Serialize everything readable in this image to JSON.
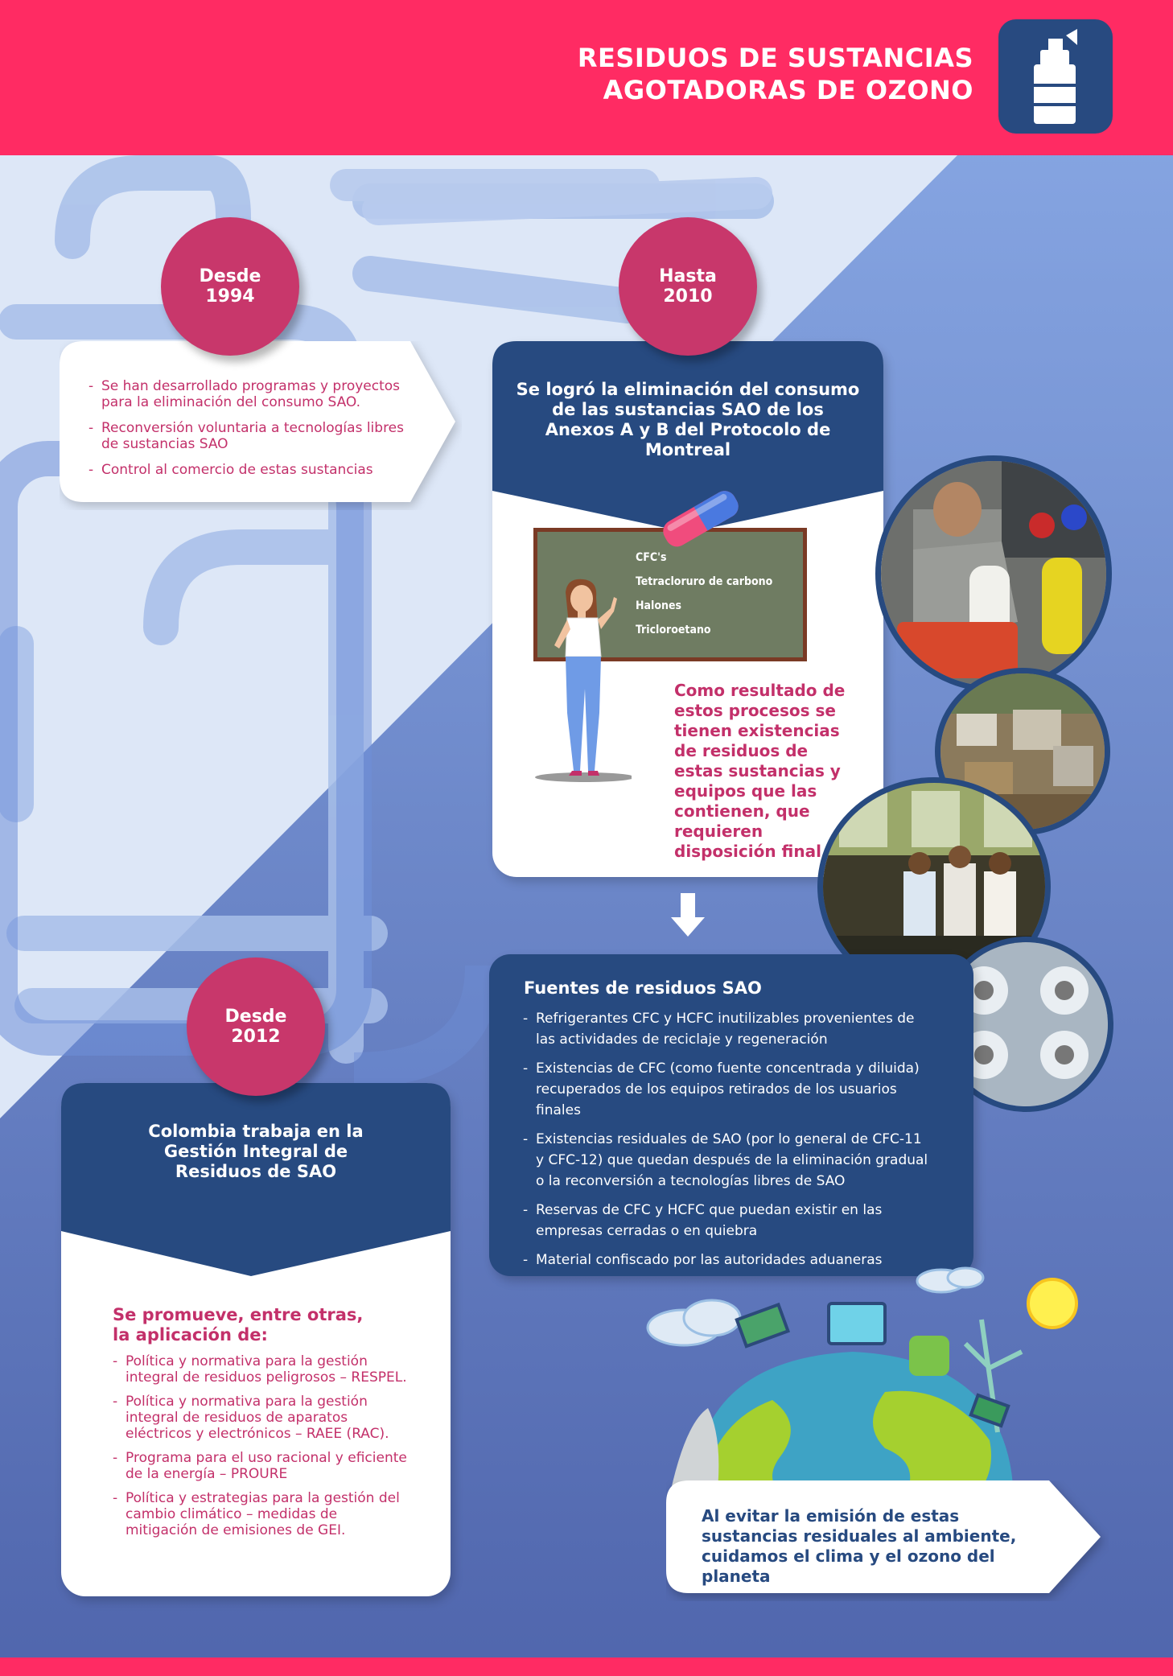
{
  "header": {
    "title_line1": "RESIDUOS DE SUSTANCIAS",
    "title_line2": "AGOTADORAS DE OZONO",
    "icon": "spray-can-icon"
  },
  "colors": {
    "header_bg": "#ff2b63",
    "navy": "#274a80",
    "magenta": "#c8376b",
    "text_magenta": "#c3306a"
  },
  "milestone_1994": {
    "label_line1": "Desde",
    "label_line2": "1994",
    "items": [
      "Se han desarrollado programas y proyectos para la eliminación del consumo SAO.",
      "Reconversión voluntaria a tecnologías libres de sustancias SAO",
      "Control al comercio de estas sustancias"
    ]
  },
  "milestone_2010": {
    "label_line1": "Hasta",
    "label_line2": "2010",
    "title": "Se logró la eliminación del consumo de las sustancias SAO de los Anexos A y B del Protocolo de Montreal",
    "board_items": [
      "CFC's",
      "Tetracloruro de carbono",
      "Halones",
      "Tricloroetano"
    ],
    "result": "Como resultado de estos procesos se tienen existencias de residuos de estas sustancias y equipos que las contienen, que requieren disposición final."
  },
  "sources": {
    "title": "Fuentes de residuos SAO",
    "items": [
      "Refrigerantes CFC y HCFC inutilizables provenientes de las actividades de reciclaje y regeneración",
      "Existencias de CFC (como fuente concentrada y diluida) recuperados de los equipos retirados de los usuarios finales",
      "Existencias residuales de SAO (por lo general de CFC-11 y CFC-12) que quedan después de la eliminación gradual o la reconversión a tecnologías libres de SAO",
      "Reservas de CFC y HCFC que puedan existir en las empresas cerradas o en quiebra",
      "Material confiscado por las autoridades aduaneras"
    ]
  },
  "milestone_2012": {
    "label_line1": "Desde",
    "label_line2": "2012",
    "title": "Colombia trabaja en la Gestión Integral de Residuos de SAO",
    "subtitle": "Se promueve, entre otras, la aplicación de:",
    "items": [
      "Política y normativa para la gestión integral de residuos peligrosos – RESPEL.",
      "Política y normativa para la gestión integral de residuos de aparatos eléctricos y electrónicos – RAEE (RAC).",
      "Programa para el uso racional y eficiente de la energía – PROURE",
      "Política y estrategias para la gestión del cambio climático – medidas de mitigación de emisiones de GEI."
    ]
  },
  "conclusion": "Al evitar la emisión de estas sustancias residuales al ambiente, cuidamos el clima y el ozono del planeta"
}
